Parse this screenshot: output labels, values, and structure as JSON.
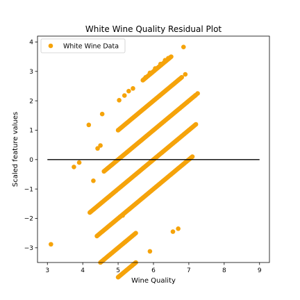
{
  "chart_data": {
    "type": "scatter",
    "title": "White Wine Quality Residual Plot",
    "xlabel": "Wine Quality",
    "ylabel": "Scaled feature values",
    "xlim": [
      2.72,
      9.28
    ],
    "ylim": [
      -3.5,
      4.2
    ],
    "xticks": [
      3,
      4,
      5,
      6,
      7,
      8,
      9
    ],
    "yticks": [
      -3,
      -2,
      -1,
      0,
      1,
      2,
      3,
      4
    ],
    "ytick_labels": [
      "−3",
      "−2",
      "−1",
      "0",
      "1",
      "2",
      "3",
      "4"
    ],
    "grid": false,
    "legend": {
      "placement": "top-left",
      "entries": [
        "White Wine Data"
      ]
    },
    "reference_line": {
      "y": 0,
      "x": [
        3,
        9
      ],
      "color": "#000000"
    },
    "series": [
      {
        "name": "White Wine Data",
        "color": "#f5a30a",
        "bands": [
          {
            "x": [
              5.0,
              5.5
            ],
            "offset": -3.0
          },
          {
            "x": [
              4.5,
              5.5
            ],
            "offset": -2.0
          },
          {
            "x": [
              4.4,
              7.1
            ],
            "offset": -1.0
          },
          {
            "x": [
              4.2,
              7.2
            ],
            "offset": 0.0
          },
          {
            "x": [
              4.6,
              7.2
            ],
            "offset": 1.0
          },
          {
            "x": [
              5.0,
              6.8
            ],
            "offset": 2.0
          },
          {
            "x": [
              5.7,
              6.5
            ],
            "offset": 3.0
          }
        ],
        "scattered_points": [
          {
            "x": 3.1,
            "y": -2.88
          },
          {
            "x": 3.75,
            "y": -0.25
          },
          {
            "x": 3.9,
            "y": -0.1
          },
          {
            "x": 4.17,
            "y": 1.18
          },
          {
            "x": 4.3,
            "y": -0.72
          },
          {
            "x": 4.55,
            "y": 1.55
          },
          {
            "x": 4.42,
            "y": 0.38
          },
          {
            "x": 4.5,
            "y": 0.48
          },
          {
            "x": 5.05,
            "y": -1.95
          },
          {
            "x": 5.2,
            "y": -2.8
          },
          {
            "x": 5.13,
            "y": -1.9
          },
          {
            "x": 5.03,
            "y": 2.02
          },
          {
            "x": 5.18,
            "y": 2.18
          },
          {
            "x": 5.3,
            "y": 2.33
          },
          {
            "x": 5.42,
            "y": 2.42
          },
          {
            "x": 5.9,
            "y": -3.12
          },
          {
            "x": 5.78,
            "y": 2.8
          },
          {
            "x": 5.9,
            "y": 2.95
          },
          {
            "x": 6.05,
            "y": 3.1
          },
          {
            "x": 6.2,
            "y": 3.25
          },
          {
            "x": 6.33,
            "y": 3.38
          },
          {
            "x": 6.42,
            "y": 3.45
          },
          {
            "x": 6.55,
            "y": -2.45
          },
          {
            "x": 6.7,
            "y": -2.35
          },
          {
            "x": 6.85,
            "y": 3.83
          },
          {
            "x": 6.9,
            "y": 2.9
          },
          {
            "x": 7.25,
            "y": 2.25
          }
        ]
      }
    ]
  }
}
